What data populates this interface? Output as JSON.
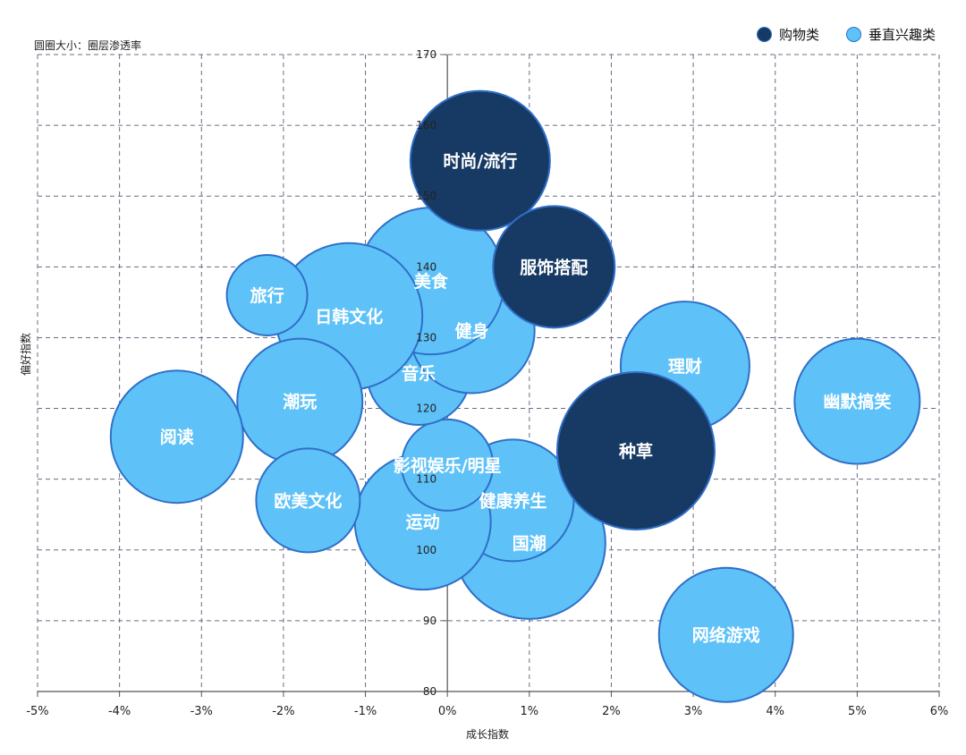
{
  "size_note": "圆圈大小：圈层渗透率",
  "legend": [
    {
      "label": "购物类",
      "color": "#173a64"
    },
    {
      "label": "垂直兴趣类",
      "color": "#5ec2f8"
    }
  ],
  "chart_data": {
    "type": "bubble",
    "xlabel": "成长指数",
    "ylabel": "偏好指数",
    "xlim": [
      -5,
      6
    ],
    "ylim": [
      80,
      170
    ],
    "x_ticks": [
      -5,
      -4,
      -3,
      -2,
      -1,
      0,
      1,
      2,
      3,
      4,
      5,
      6
    ],
    "x_tick_labels": [
      "-5%",
      "-4%",
      "-3%",
      "-2%",
      "-1%",
      "0%",
      "1%",
      "2%",
      "3%",
      "4%",
      "5%",
      "6%"
    ],
    "y_ticks": [
      80,
      90,
      100,
      110,
      120,
      130,
      140,
      150,
      160,
      170
    ],
    "y_tick_labels": [
      "80",
      "90",
      "100",
      "110",
      "120",
      "130",
      "140",
      "150",
      "160",
      "170"
    ],
    "grid": true,
    "legend_position": "top-right",
    "series": [
      {
        "name": "垂直兴趣类",
        "color": "#5ec2f8",
        "points": [
          {
            "label": "幽默搞笑",
            "x": 5.0,
            "y": 121,
            "size": 70
          },
          {
            "label": "理财",
            "x": 2.9,
            "y": 126,
            "size": 72
          },
          {
            "label": "网络游戏",
            "x": 3.4,
            "y": 88,
            "size": 75
          },
          {
            "label": "国潮",
            "x": 1.0,
            "y": 101,
            "size": 85
          },
          {
            "label": "健康养生",
            "x": 0.8,
            "y": 107,
            "size": 68
          },
          {
            "label": "运动",
            "x": -0.3,
            "y": 104,
            "size": 76
          },
          {
            "label": "影视娱乐/明星",
            "x": 0.0,
            "y": 112,
            "size": 51
          },
          {
            "label": "音乐",
            "x": -0.35,
            "y": 125,
            "size": 58
          },
          {
            "label": "健身",
            "x": 0.3,
            "y": 131,
            "size": 70
          },
          {
            "label": "美食",
            "x": -0.2,
            "y": 138,
            "size": 82
          },
          {
            "label": "日韩文化",
            "x": -1.2,
            "y": 133,
            "size": 82
          },
          {
            "label": "旅行",
            "x": -2.2,
            "y": 136,
            "size": 45
          },
          {
            "label": "潮玩",
            "x": -1.8,
            "y": 121,
            "size": 70
          },
          {
            "label": "阅读",
            "x": -3.3,
            "y": 116,
            "size": 74
          },
          {
            "label": "欧美文化",
            "x": -1.7,
            "y": 107,
            "size": 58
          }
        ]
      },
      {
        "name": "购物类",
        "color": "#173a64",
        "points": [
          {
            "label": "时尚/流行",
            "x": 0.4,
            "y": 155,
            "size": 78
          },
          {
            "label": "服饰搭配",
            "x": 1.3,
            "y": 140,
            "size": 68
          },
          {
            "label": "种草",
            "x": 2.3,
            "y": 114,
            "size": 88
          }
        ]
      }
    ]
  }
}
